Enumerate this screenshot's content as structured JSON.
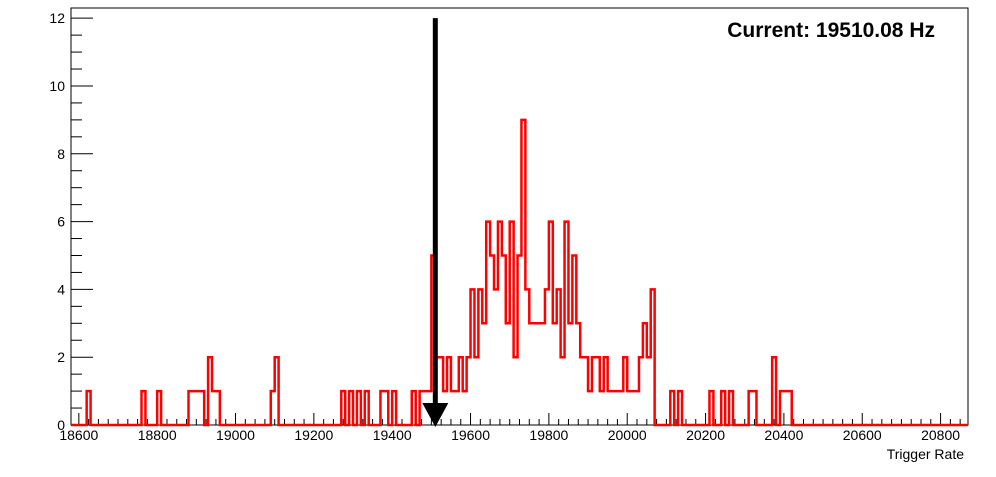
{
  "chart_data": {
    "type": "histogram",
    "title": "",
    "xlabel": "Trigger Rate",
    "ylabel": "",
    "xlim": [
      18580,
      20870
    ],
    "ylim": [
      0,
      12.3
    ],
    "bin_width": 10,
    "x_ticks": [
      18600,
      18800,
      19000,
      19200,
      19400,
      19600,
      19800,
      20000,
      20200,
      20400,
      20600,
      20800
    ],
    "y_ticks": [
      0,
      2,
      4,
      6,
      8,
      10,
      12
    ],
    "grid": false,
    "legend": "none",
    "series": [
      {
        "color": "#ff0000",
        "bins": [
          [
            18620,
            1
          ],
          [
            18760,
            1
          ],
          [
            18800,
            1
          ],
          [
            18880,
            1
          ],
          [
            18890,
            1
          ],
          [
            18900,
            1
          ],
          [
            18910,
            1
          ],
          [
            18930,
            2
          ],
          [
            18940,
            1
          ],
          [
            18950,
            1
          ],
          [
            19090,
            1
          ],
          [
            19100,
            2
          ],
          [
            19270,
            1
          ],
          [
            19290,
            1
          ],
          [
            19310,
            1
          ],
          [
            19330,
            1
          ],
          [
            19370,
            1
          ],
          [
            19380,
            1
          ],
          [
            19400,
            1
          ],
          [
            19450,
            1
          ],
          [
            19470,
            1
          ],
          [
            19480,
            1
          ],
          [
            19490,
            1
          ],
          [
            19500,
            5
          ],
          [
            19510,
            2
          ],
          [
            19520,
            2
          ],
          [
            19530,
            1
          ],
          [
            19540,
            2
          ],
          [
            19550,
            1
          ],
          [
            19560,
            1
          ],
          [
            19570,
            2
          ],
          [
            19580,
            1
          ],
          [
            19590,
            2
          ],
          [
            19600,
            4
          ],
          [
            19610,
            2
          ],
          [
            19620,
            4
          ],
          [
            19630,
            3
          ],
          [
            19640,
            6
          ],
          [
            19650,
            5
          ],
          [
            19660,
            4
          ],
          [
            19670,
            6
          ],
          [
            19680,
            5
          ],
          [
            19690,
            3
          ],
          [
            19700,
            6
          ],
          [
            19710,
            2
          ],
          [
            19720,
            5
          ],
          [
            19730,
            9
          ],
          [
            19740,
            4
          ],
          [
            19750,
            3
          ],
          [
            19760,
            3
          ],
          [
            19770,
            3
          ],
          [
            19780,
            3
          ],
          [
            19790,
            4
          ],
          [
            19800,
            6
          ],
          [
            19810,
            3
          ],
          [
            19820,
            4
          ],
          [
            19830,
            2
          ],
          [
            19840,
            6
          ],
          [
            19850,
            3
          ],
          [
            19860,
            5
          ],
          [
            19870,
            3
          ],
          [
            19880,
            2
          ],
          [
            19890,
            2
          ],
          [
            19900,
            1
          ],
          [
            19910,
            2
          ],
          [
            19920,
            2
          ],
          [
            19930,
            1
          ],
          [
            19940,
            2
          ],
          [
            19950,
            1
          ],
          [
            19960,
            1
          ],
          [
            19970,
            1
          ],
          [
            19980,
            1
          ],
          [
            19990,
            2
          ],
          [
            20000,
            1
          ],
          [
            20010,
            1
          ],
          [
            20020,
            1
          ],
          [
            20030,
            2
          ],
          [
            20040,
            3
          ],
          [
            20050,
            2
          ],
          [
            20060,
            4
          ],
          [
            20110,
            1
          ],
          [
            20130,
            1
          ],
          [
            20210,
            1
          ],
          [
            20240,
            1
          ],
          [
            20260,
            1
          ],
          [
            20310,
            1
          ],
          [
            20320,
            1
          ],
          [
            20370,
            2
          ],
          [
            20390,
            1
          ],
          [
            20400,
            1
          ],
          [
            20410,
            1
          ]
        ]
      }
    ],
    "marker": {
      "x": 19510.08,
      "y_top": 12,
      "color": "#000000",
      "label": "Current: 19510.08 Hz"
    }
  }
}
